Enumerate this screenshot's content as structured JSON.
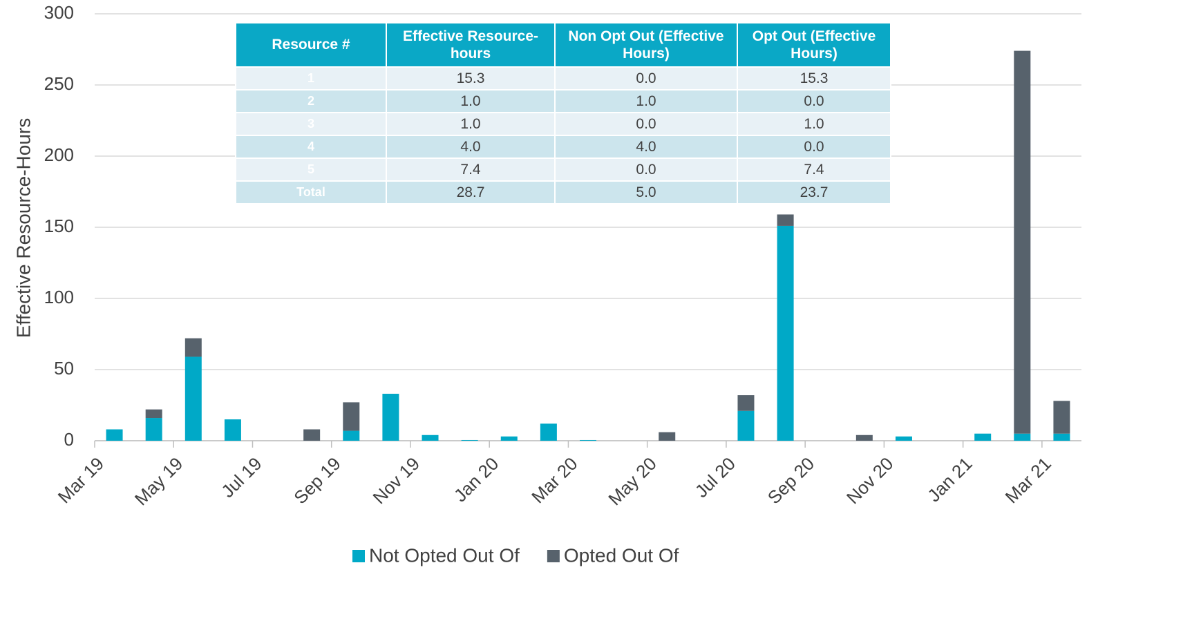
{
  "chart_data": {
    "type": "stacked_bar",
    "y_label": "Effective Resource-Hours",
    "categories": [
      "Mar 19",
      null,
      "May 19",
      null,
      "Jul 19",
      null,
      "Sep 19",
      null,
      "Nov 19",
      null,
      "Jan 20",
      null,
      "Mar 20",
      null,
      "May 20",
      null,
      "Jul 20",
      null,
      "Sep 20",
      null,
      "Nov 20",
      null,
      "Jan 21",
      null,
      "Mar 21"
    ],
    "series": [
      {
        "name": "Not Opted Out Of",
        "color": "#00a9c7",
        "values": [
          8,
          16,
          59,
          15,
          0,
          0,
          7,
          33,
          4,
          0.5,
          3,
          12,
          0.5,
          0,
          0,
          0,
          21,
          151,
          0,
          0,
          3,
          0,
          5,
          5,
          5
        ]
      },
      {
        "name": "Opted Out Of",
        "color": "#57626c",
        "values": [
          0,
          6,
          13,
          0,
          0,
          8,
          20,
          0,
          0,
          0,
          0,
          0,
          0,
          0,
          6,
          0,
          11,
          8,
          0,
          4,
          0,
          0,
          0,
          269,
          23
        ]
      }
    ],
    "ylim": [
      0,
      300
    ],
    "yticks": [
      0,
      50,
      100,
      150,
      200,
      250,
      300
    ],
    "grid": true,
    "legend": "bottom"
  },
  "table": {
    "header": [
      "Resource #",
      "Effective Resource-hours",
      "Non Opt Out (Effective Hours)",
      "Opt Out (Effective Hours)"
    ],
    "rows": [
      [
        "1",
        "15.3",
        "0.0",
        "15.3"
      ],
      [
        "2",
        "1.0",
        "1.0",
        "0.0"
      ],
      [
        "3",
        "1.0",
        "0.0",
        "1.0"
      ],
      [
        "4",
        "4.0",
        "4.0",
        "0.0"
      ],
      [
        "5",
        "7.4",
        "0.0",
        "7.4"
      ],
      [
        "Total",
        "28.7",
        "5.0",
        "23.7"
      ]
    ]
  }
}
